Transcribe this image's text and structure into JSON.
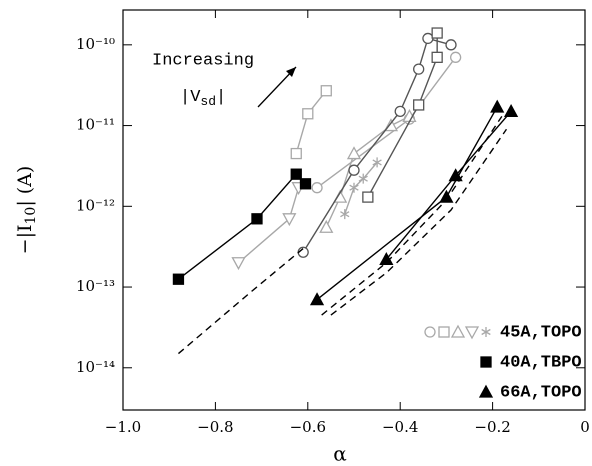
{
  "chart_data": {
    "type": "scatter",
    "x_label": "α",
    "y_label": {
      "main": "−|I",
      "sub": "10",
      "tail": "| (A)"
    },
    "annotation": {
      "line1": "Increasing",
      "line2": "|V",
      "line2_sub": "sd",
      "line2_tail": "|"
    },
    "log_y": true,
    "xlim": [
      -1.0,
      0
    ],
    "ylim": [
      3e-15,
      2.7e-10
    ],
    "xticks": [
      {
        "value": -1.0,
        "label": "−1.0"
      },
      {
        "value": -0.8,
        "label": "−0.8"
      },
      {
        "value": -0.6,
        "label": "−0.6"
      },
      {
        "value": -0.4,
        "label": "−0.4"
      },
      {
        "value": -0.2,
        "label": "−0.2"
      },
      0
    ],
    "yticks": [
      {
        "value": 1e-14,
        "label": "10⁻¹⁴"
      },
      {
        "value": 1e-13,
        "label": "10⁻¹³"
      },
      {
        "value": 1e-12,
        "label": "10⁻¹²"
      },
      {
        "value": 1e-11,
        "label": "10⁻¹¹"
      },
      {
        "value": 1e-10,
        "label": "10⁻¹⁰"
      }
    ],
    "legend_corner": "lower right",
    "legend": [
      {
        "label": "45A,TOPO",
        "color": "#a8a8a8",
        "markers": [
          "circle",
          "square",
          "triangle",
          "triangle-down",
          "star"
        ],
        "filled": false
      },
      {
        "label": "40A,TBPO",
        "color": "#000000",
        "markers": [
          "square"
        ],
        "filled": true
      },
      {
        "label": "66A,TOPO",
        "color": "#000000",
        "markers": [
          "triangle"
        ],
        "filled": true
      }
    ],
    "series": [
      {
        "marker": "square",
        "color": "#a8a8a8",
        "filled": false,
        "dashed": false,
        "x": [
          -0.625,
          -0.6,
          -0.56
        ],
        "values": [
          4.5e-12,
          1.4e-11,
          2.7e-11
        ]
      },
      {
        "marker": "triangle-down",
        "color": "#a8a8a8",
        "filled": false,
        "dashed": false,
        "x": [
          -0.75,
          -0.64,
          -0.62
        ],
        "values": [
          2e-13,
          7e-13,
          1.7e-12
        ]
      },
      {
        "marker": "circle",
        "color": "#a8a8a8",
        "filled": false,
        "dashed": false,
        "x": [
          -0.58,
          -0.38,
          -0.28
        ],
        "values": [
          1.7e-12,
          1.2e-11,
          7e-11
        ]
      },
      {
        "marker": "triangle",
        "color": "#a8a8a8",
        "filled": false,
        "dashed": false,
        "x": [
          -0.56,
          -0.53,
          -0.5,
          -0.42,
          -0.38
        ],
        "values": [
          5.5e-13,
          1.3e-12,
          4.5e-12,
          1e-11,
          1.3e-11
        ]
      },
      {
        "marker": "star",
        "color": "#a8a8a8",
        "filled": false,
        "dashed": false,
        "x": [
          -0.52,
          -0.5,
          -0.48,
          -0.45
        ],
        "values": [
          8e-13,
          1.7e-12,
          2.2e-12,
          3.5e-12
        ]
      },
      {
        "marker": "circle",
        "color": "#555555",
        "filled": false,
        "dashed": false,
        "x": [
          -0.61,
          -0.5,
          -0.4,
          -0.36,
          -0.34,
          -0.29
        ],
        "values": [
          2.7e-13,
          2.8e-12,
          1.5e-11,
          5e-11,
          1.2e-10,
          1e-10
        ]
      },
      {
        "marker": "square",
        "color": "#555555",
        "filled": false,
        "dashed": false,
        "x": [
          -0.47,
          -0.36,
          -0.32,
          -0.32
        ],
        "values": [
          1.3e-12,
          1.8e-11,
          7e-11,
          1.4e-10
        ]
      },
      {
        "marker": "square",
        "color": "#000000",
        "filled": true,
        "dashed": false,
        "x": [
          -0.88,
          -0.71,
          -0.625,
          -0.605
        ],
        "values": [
          1.25e-13,
          7e-13,
          2.5e-12,
          1.9e-12
        ]
      },
      {
        "marker": "triangle",
        "color": "#000000",
        "filled": true,
        "dashed": false,
        "x": [
          -0.58,
          -0.3,
          -0.19
        ],
        "values": [
          7e-14,
          1.3e-12,
          1.7e-11
        ]
      },
      {
        "marker": "triangle",
        "color": "#000000",
        "filled": true,
        "dashed": false,
        "x": [
          -0.43,
          -0.28,
          -0.16
        ],
        "values": [
          2.2e-13,
          2.4e-12,
          1.5e-11
        ]
      },
      {
        "marker": "none",
        "color": "#000000",
        "filled": false,
        "dashed": true,
        "x": [
          -0.88,
          -0.72,
          -0.61
        ],
        "values": [
          1.5e-14,
          9e-14,
          3e-13
        ]
      },
      {
        "marker": "none",
        "color": "#000000",
        "filled": false,
        "dashed": true,
        "x": [
          -0.57,
          -0.43,
          -0.3,
          -0.18
        ],
        "values": [
          4.5e-14,
          2e-13,
          1.2e-12,
          1.3e-11
        ]
      },
      {
        "marker": "none",
        "color": "#000000",
        "filled": false,
        "dashed": true,
        "x": [
          -0.55,
          -0.43,
          -0.29,
          -0.17
        ],
        "values": [
          4.5e-14,
          1.5e-13,
          9e-13,
          9e-12
        ]
      }
    ]
  }
}
